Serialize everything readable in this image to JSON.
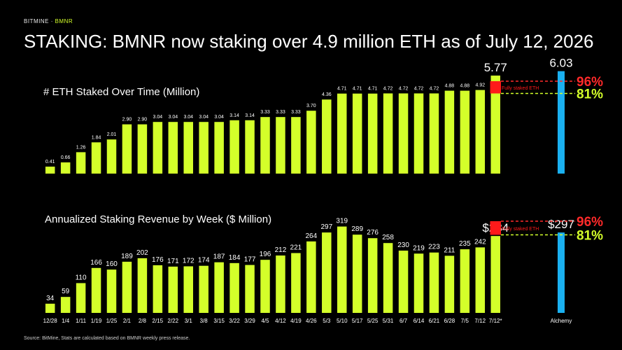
{
  "brand": {
    "name": "BITMINE",
    "separator": "·",
    "ticker": "BMNR"
  },
  "headline": "STAKING: BMNR now staking over 4.9 million ETH as of July 12, 2026",
  "source": "Source: BitMine, Stats are calculated based on BMNR weekly press release.",
  "colors": {
    "bar": "#d4ff2a",
    "highlight": "#ff1a1a",
    "alchemy": "#1ab0f0",
    "line96": "#ff2a2a",
    "line81": "#d4ff2a"
  },
  "chart_data": [
    {
      "type": "bar",
      "title": "# ETH Staked Over Time (Million)",
      "categories": [
        "12/28",
        "1/4",
        "1/11",
        "1/19",
        "1/25",
        "2/1",
        "2/8",
        "2/15",
        "2/22",
        "3/1",
        "3/8",
        "3/15",
        "3/22",
        "3/29",
        "4/5",
        "4/12",
        "4/19",
        "4/26",
        "5/3",
        "5/10",
        "5/17",
        "5/25",
        "5/31",
        "6/7",
        "6/14",
        "6/21",
        "6/28",
        "7/5",
        "7/12",
        "7/12*"
      ],
      "values": [
        0.41,
        0.66,
        1.26,
        1.84,
        2.01,
        2.9,
        2.9,
        3.04,
        3.04,
        3.04,
        3.04,
        3.04,
        3.14,
        3.14,
        3.33,
        3.33,
        3.33,
        3.7,
        4.36,
        4.71,
        4.71,
        4.71,
        4.72,
        4.72,
        4.72,
        4.72,
        4.88,
        4.88,
        4.92,
        5.77
      ],
      "value_labels": [
        "0.41",
        "0.66",
        "1.26",
        "1.84",
        "2.01",
        "2.90",
        "2.90",
        "3.04",
        "3.04",
        "3.04",
        "3.04",
        "3.04",
        "3.14",
        "3.14",
        "3.33",
        "3.33",
        "3.33",
        "3.70",
        "4.36",
        "4.71",
        "4.71",
        "4.71",
        "4.72",
        "4.72",
        "4.72",
        "4.72",
        "4.88",
        "4.88",
        "4.92",
        "5.77"
      ],
      "comparison": {
        "label": "Alchemy",
        "value": 6.03,
        "value_label": "6.03"
      },
      "fully_staked_label": "Fully staked ETH",
      "ref_lines": [
        {
          "label": "96%",
          "value": 5.77
        },
        {
          "label": "81%",
          "value": 4.92
        }
      ],
      "ylim": [
        0,
        6.4
      ]
    },
    {
      "type": "bar",
      "title": "Annualized Staking Revenue by Week ($ Million)",
      "categories": [
        "12/28",
        "1/4",
        "1/11",
        "1/19",
        "1/25",
        "2/1",
        "2/8",
        "2/15",
        "2/22",
        "3/1",
        "3/8",
        "3/15",
        "3/22",
        "3/29",
        "4/5",
        "4/12",
        "4/19",
        "4/26",
        "5/3",
        "5/10",
        "5/17",
        "5/25",
        "5/31",
        "6/7",
        "6/14",
        "6/21",
        "6/28",
        "7/5",
        "7/12",
        "7/12*"
      ],
      "values": [
        34,
        59,
        110,
        166,
        160,
        189,
        202,
        176,
        171,
        172,
        174,
        187,
        184,
        177,
        196,
        212,
        221,
        264,
        297,
        319,
        289,
        276,
        258,
        230,
        219,
        223,
        211,
        235,
        242,
        284
      ],
      "value_labels": [
        "34",
        "59",
        "110",
        "166",
        "160",
        "189",
        "202",
        "176",
        "171",
        "172",
        "174",
        "187",
        "184",
        "177",
        "196",
        "212",
        "221",
        "264",
        "297",
        "319",
        "289",
        "276",
        "258",
        "230",
        "219",
        "223",
        "211",
        "235",
        "242",
        "$284"
      ],
      "comparison": {
        "label": "Alchemy",
        "value": 297,
        "value_label": "$297"
      },
      "fully_staked_label": "Fully staked ETH",
      "ref_lines": [
        {
          "label": "96%",
          "value": 284
        },
        {
          "label": "81%",
          "value": 242
        }
      ],
      "ylim": [
        0,
        330
      ]
    }
  ]
}
